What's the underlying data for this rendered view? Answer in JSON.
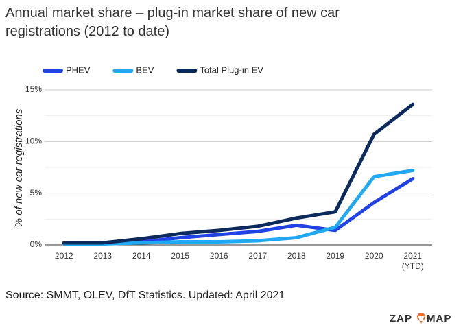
{
  "chart_data": {
    "type": "line",
    "title": "Annual market share – plug-in market share of new car registrations (2012 to date)",
    "y_label": "% of new car registrations",
    "categories": [
      "2012",
      "2013",
      "2014",
      "2015",
      "2016",
      "2017",
      "2018",
      "2019",
      "2020",
      "2021 (YTD)"
    ],
    "series": [
      {
        "name": "PHEV",
        "color": "#2143e6",
        "values": [
          0.1,
          0.1,
          0.3,
          0.7,
          1.0,
          1.3,
          1.9,
          1.4,
          4.1,
          6.4
        ]
      },
      {
        "name": "BEV",
        "color": "#20a9f3",
        "values": [
          0.1,
          0.1,
          0.2,
          0.3,
          0.3,
          0.4,
          0.7,
          1.7,
          6.6,
          7.2
        ]
      },
      {
        "name": "Total Plug-in EV",
        "color": "#0c2a5b",
        "values": [
          0.2,
          0.2,
          0.6,
          1.1,
          1.4,
          1.8,
          2.6,
          3.2,
          10.7,
          13.6
        ]
      }
    ],
    "ylim": [
      0,
      15
    ],
    "yticks": [
      {
        "value": 0,
        "label": "0%"
      },
      {
        "value": 5,
        "label": "5%"
      },
      {
        "value": 10,
        "label": "10%"
      },
      {
        "value": 15,
        "label": "15%"
      }
    ],
    "minor_yticks": [
      2.5,
      7.5,
      12.5
    ],
    "grid": true,
    "legend": "top",
    "source": "Source: SMMT, OLEV, DfT Statistics. Updated: April 2021",
    "logo": [
      "ZAP",
      "MAP"
    ]
  }
}
